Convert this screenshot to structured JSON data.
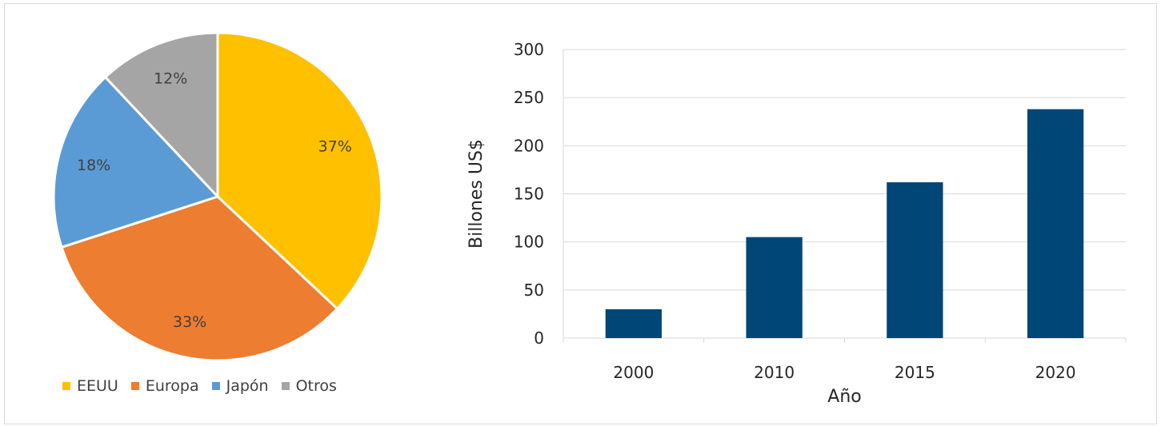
{
  "chart_data": [
    {
      "type": "pie",
      "categories": [
        "EEUU",
        "Europa",
        "Japón",
        "Otros"
      ],
      "values": [
        37,
        33,
        18,
        12
      ],
      "data_labels": [
        "37%",
        "33%",
        "18%",
        "12%"
      ],
      "colors": [
        "#FFC000",
        "#ED7D31",
        "#5B9BD5",
        "#A5A5A5"
      ],
      "legend": "bottom"
    },
    {
      "type": "bar",
      "categories": [
        "2000",
        "2010",
        "2015",
        "2020"
      ],
      "values": [
        30,
        105,
        162,
        238
      ],
      "xlabel": "Año",
      "ylabel": "Billones US$",
      "ylim": [
        0,
        300
      ],
      "yticks": [
        "0",
        "50",
        "100",
        "150",
        "200",
        "250",
        "300"
      ],
      "grid": true,
      "color": "#004677"
    }
  ]
}
